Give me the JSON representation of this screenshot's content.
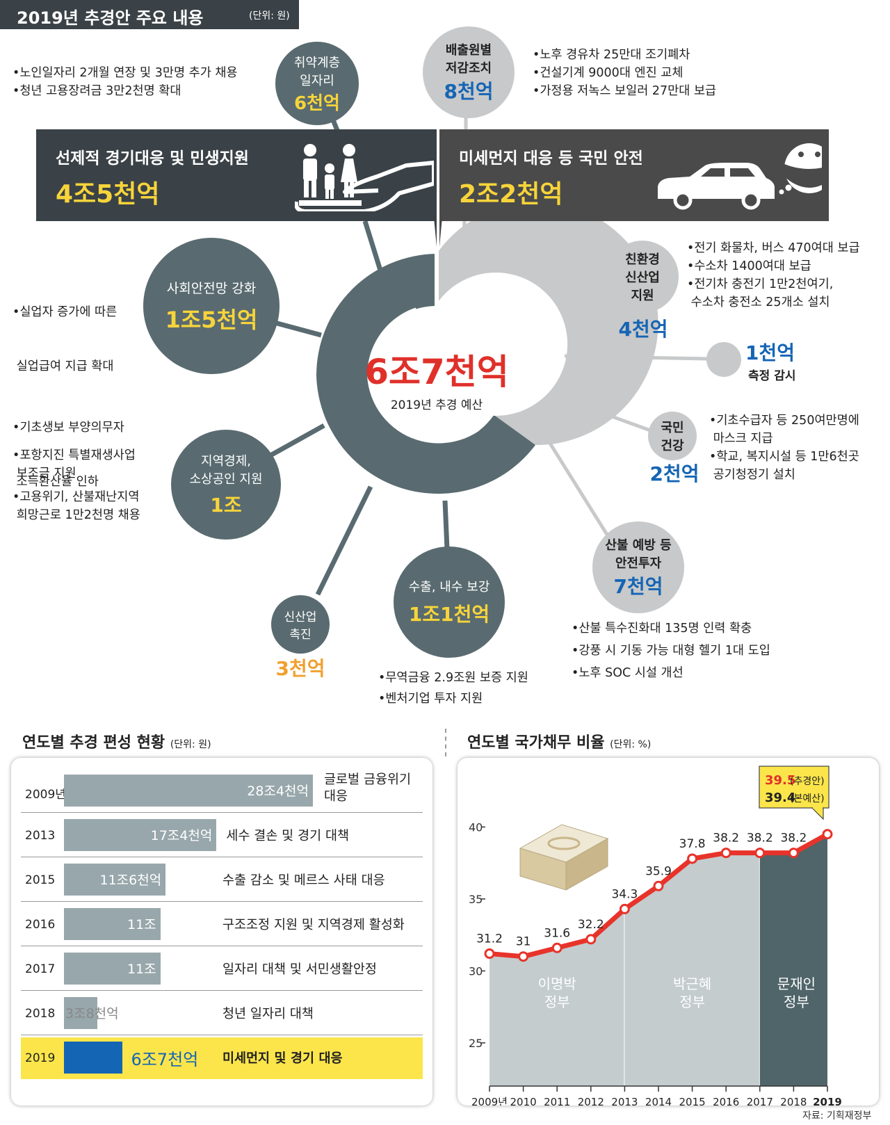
{
  "header": {
    "title": "2019년 추경안 주요 내용",
    "unit": "(단위: 원)"
  },
  "center": {
    "value": "6조7천억",
    "label": "2019년 추경 예산"
  },
  "box_left": {
    "title": "선제적 경기대응 및 민생지원",
    "value": "4조5천억"
  },
  "box_right": {
    "title": "미세먼지 대응 등 국민 안전",
    "value": "2조2천억"
  },
  "items": {
    "jobs": {
      "l1": "취약계층",
      "l2": "일자리",
      "value": "6천억",
      "bullets": [
        "•노인일자리 2개월 연장 및 3만명 추가 채용",
        "•청년 고용장려금 3만2천명 확대"
      ]
    },
    "emission": {
      "l1": "배출원별",
      "l2": "저감조치",
      "value": "8천억",
      "bullets": [
        "•노후 경유차 25만대 조기폐차",
        "•건설기계 9000대 엔진 교체",
        "•가정용 저녹스 보일러 27만대 보급"
      ]
    },
    "safety_net": {
      "label": "사회안전망 강화",
      "value": "1조5천억",
      "bullets": [
        "•실업자 증가에 따른",
        " 실업급여 지급 확대",
        "•기초생보 부양의무자",
        " 소득환산율 인하"
      ]
    },
    "eco": {
      "l1": "친환경",
      "l2": "신산업",
      "l3": "지원",
      "value": "4천억",
      "bullets": [
        "•전기 화물차, 버스 470여대 보급",
        "•수소차 1400여대 보급",
        "•전기차 충전기 1만2천여기,",
        " 수소차 충전소 25개소 설치"
      ]
    },
    "monitor": {
      "value": "1천억",
      "label": "측정 감시"
    },
    "health": {
      "l1": "국민",
      "l2": "건강",
      "value": "2천억",
      "bullets": [
        "•기초수급자 등 250여만명에",
        " 마스크 지급",
        "•학교, 복지시설 등 1만6천곳",
        " 공기청정기 설치"
      ]
    },
    "regional": {
      "l1": "지역경제,",
      "l2": "소상공인 지원",
      "value": "1조",
      "bullets": [
        "•포항지진 특별재생사업",
        " 보조금 지원",
        "•고용위기, 산불재난지역",
        " 희망근로 1만2천명 채용"
      ]
    },
    "industrial": {
      "l1": "산불 예방 등",
      "l2": "안전투자",
      "value": "7천억",
      "bullets": [
        "•산불 특수진화대 135명 인력 확충",
        "•강풍 시 기동 가능 대형 헬기 1대 도입",
        "•노후 SOC 시설 개선"
      ]
    },
    "export": {
      "label": "수출, 내수 보강",
      "value": "1조1천억",
      "bullets": [
        "•무역금융 2.9조원 보증 지원",
        "•벤처기업 투자 지원"
      ]
    },
    "newind": {
      "l1": "신산업",
      "l2": "촉진",
      "value": "3천억"
    }
  },
  "colors": {
    "dark": "#596b70",
    "light": "#c8c9ca",
    "yellow": "#f7d43a",
    "blue": "#1565b5",
    "red": "#e0302a",
    "highlight": "#fbe54a"
  },
  "bar_section": {
    "title": "연도별 추경 편성 현황",
    "unit": "(단위: 원)"
  },
  "line_section": {
    "title": "연도별 국가채무 비율",
    "unit": "(단위: %)"
  },
  "source": "자료: 기획재정부",
  "chart_data": [
    {
      "type": "bar",
      "title": "연도별 추경 편성 현황",
      "unit": "원",
      "categories": [
        "2009년",
        "2013",
        "2015",
        "2016",
        "2017",
        "2018",
        "2019"
      ],
      "values": [
        28.4,
        17.4,
        11.6,
        11,
        11,
        3.8,
        6.7
      ],
      "value_unit": "조원",
      "labels": [
        "28조4천억",
        "17조4천억",
        "11조6천억",
        "11조",
        "11조",
        "3조8천억",
        "6조7천억"
      ],
      "descriptions": [
        "글로벌 금융위기 대응",
        "세수 결손 및 경기 대책",
        "수출 감소 및 메르스 사태 대응",
        "구조조정 지원 및 지역경제 활성화",
        "일자리 대책 및 서민생활안정",
        "청년 일자리 대책",
        "미세먼지 및 경기 대응"
      ],
      "highlight": "2019"
    },
    {
      "type": "line",
      "title": "연도별 국가채무 비율",
      "unit": "%",
      "x": [
        "2009년",
        "2010",
        "2011",
        "2012",
        "2013",
        "2014",
        "2015",
        "2016",
        "2017",
        "2018",
        "2019"
      ],
      "values": [
        31.2,
        31,
        31.6,
        32.2,
        34.3,
        35.9,
        37.8,
        38.2,
        38.2,
        38.2,
        39.5
      ],
      "point_labels": [
        "31.2",
        "31",
        "31.6",
        "32.2",
        "34.3",
        "35.9",
        "37.8",
        "38.2",
        "38.2",
        "38.2",
        ""
      ],
      "yticks": [
        25,
        30,
        35,
        40
      ],
      "ylim": [
        22,
        42
      ],
      "annotation": {
        "v1": "39.5",
        "t1": "(추경안)",
        "v2": "39.4",
        "t2": "(본예산)"
      },
      "eras": [
        {
          "l1": "이명박",
          "l2": "정부",
          "from": 0,
          "to": 4
        },
        {
          "l1": "박근혜",
          "l2": "정부",
          "from": 4,
          "to": 8
        },
        {
          "l1": "문재인",
          "l2": "정부",
          "from": 8,
          "to": 10
        }
      ]
    }
  ]
}
